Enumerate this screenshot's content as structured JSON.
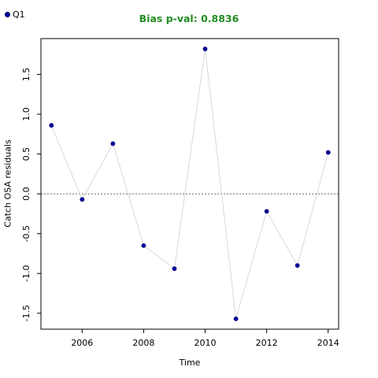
{
  "chart_data": {
    "type": "scatter",
    "title": "Bias p-val: 0.8836",
    "xlabel": "Time",
    "ylabel": "Catch OSA residuals",
    "xlim": [
      2004.66,
      2014.34
    ],
    "ylim": [
      -1.7,
      1.95
    ],
    "x_ticks": [
      2006,
      2008,
      2010,
      2012,
      2014
    ],
    "y_ticks": [
      -1.5,
      -1.0,
      -0.5,
      0.0,
      0.5,
      1.0,
      1.5
    ],
    "x_tick_labels": [
      "2006",
      "2008",
      "2010",
      "2012",
      "2014"
    ],
    "y_tick_labels": [
      "-1.5",
      "-1.0",
      "-0.5",
      "0.0",
      "0.5",
      "1.0",
      "1.5"
    ],
    "reference_line": 0.0,
    "legend": {
      "position": "top-left",
      "entries": [
        "Q1"
      ]
    },
    "series": [
      {
        "name": "Q1",
        "color": "#0000a0",
        "line_color": "#d0d0d0",
        "x": [
          2005,
          2006,
          2007,
          2008,
          2009,
          2010,
          2011,
          2012,
          2013,
          2014
        ],
        "y": [
          0.86,
          -0.07,
          0.63,
          -0.65,
          -0.94,
          1.82,
          -1.57,
          -0.22,
          -0.9,
          0.52
        ]
      }
    ]
  }
}
